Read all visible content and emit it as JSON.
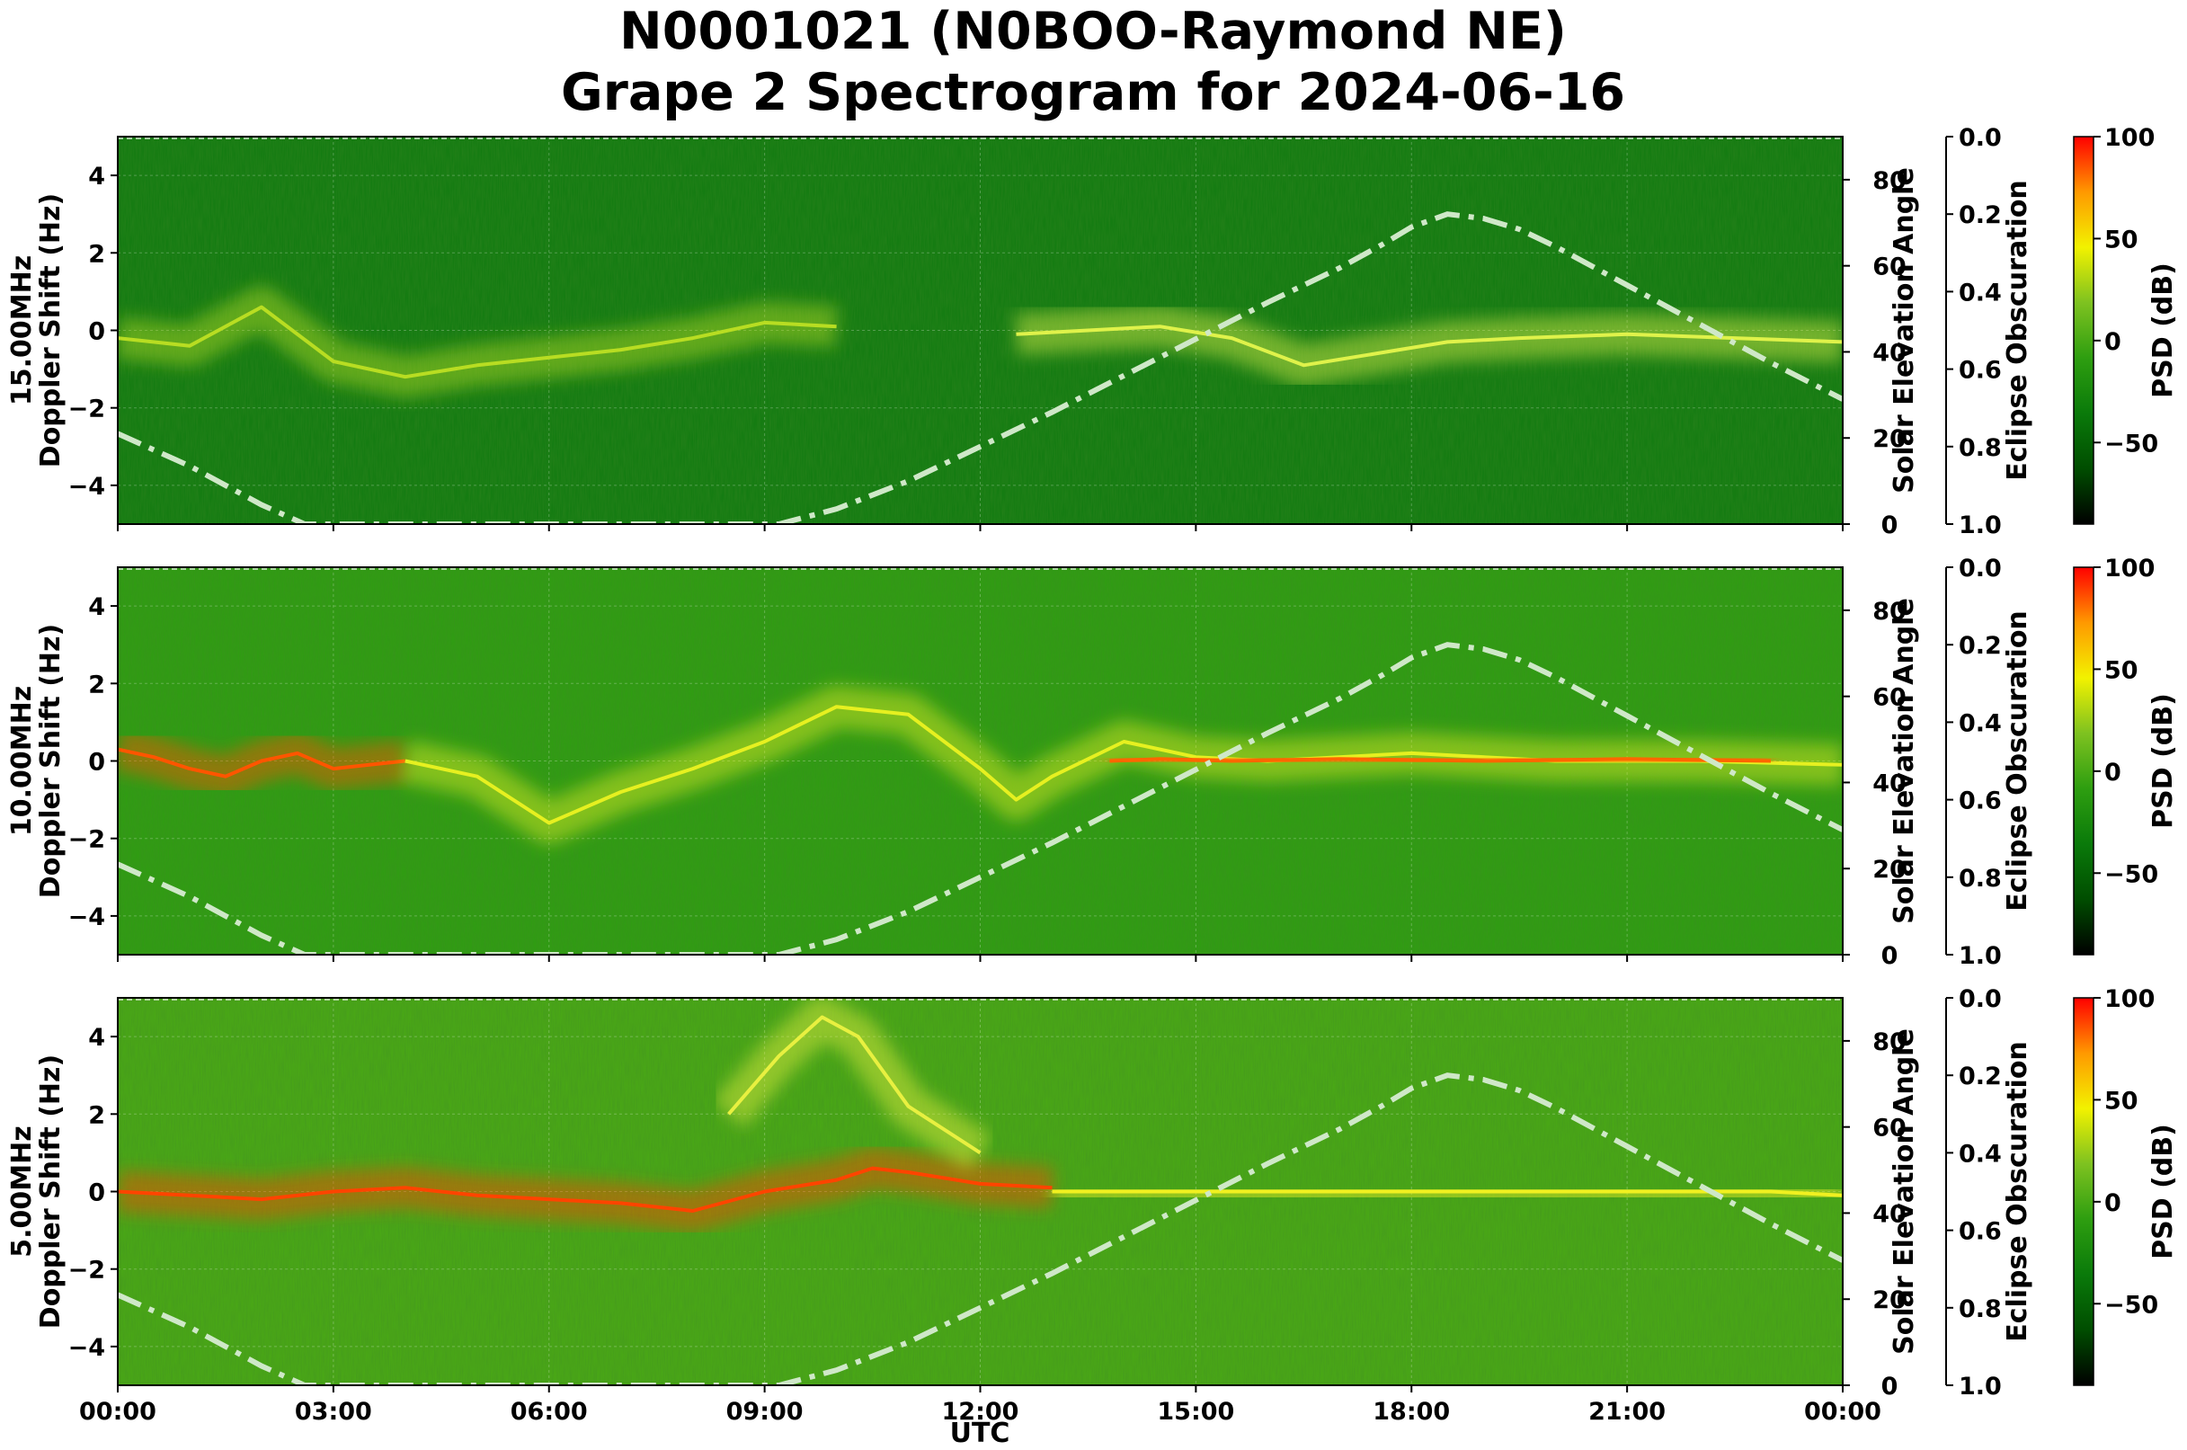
{
  "chart_data": {
    "type": "heatmap",
    "title_line1": "N0001021 (N0BOO-Raymond NE)",
    "title_line2": "Grape 2 Spectrogram for 2024-06-16",
    "xlabel": "UTC",
    "x_ticks": [
      "00:00",
      "03:00",
      "06:00",
      "09:00",
      "12:00",
      "15:00",
      "18:00",
      "21:00",
      "00:00"
    ],
    "xlim_hours": [
      0,
      24
    ],
    "ylim": [
      -5,
      5
    ],
    "y_ticks": [
      4,
      2,
      0,
      -2,
      -4
    ],
    "y_tick_labels": [
      "4",
      "2",
      "0",
      "−2",
      "−4"
    ],
    "right_axis_label": "Solar Elevation Angle",
    "right_ylim": [
      0,
      90
    ],
    "right_ticks": [
      80,
      60,
      40,
      20,
      0
    ],
    "right_tick_labels": [
      "80",
      "60",
      "40",
      "20",
      "0"
    ],
    "eclipse_axis_label": "Eclipse Obscuration",
    "eclipse_ylim": [
      0,
      1
    ],
    "eclipse_ticks": [
      0.0,
      0.2,
      0.4,
      0.6,
      0.8,
      1.0
    ],
    "eclipse_tick_labels": [
      "0.0",
      "0.2",
      "0.4",
      "0.6",
      "0.8",
      "1.0"
    ],
    "colorbar_label": "PSD (dB)",
    "colorbar_range": [
      -90,
      100
    ],
    "colorbar_ticks": [
      100,
      50,
      0,
      -50
    ],
    "colorbar_tick_labels": [
      "100",
      "50",
      "0",
      "−50"
    ],
    "colormap": [
      "#000000",
      "#004d00",
      "#0a7a0a",
      "#2e9e10",
      "#7ec220",
      "#f2f200",
      "#ff9900",
      "#ff0000"
    ],
    "solar_elevation_line_color": "#cfe8c8",
    "panels": [
      {
        "id": "15mhz",
        "ylabel_line1": "15.00MHz",
        "ylabel_line2": "Doppler Shift (Hz)",
        "base_color": "#0f7a0f",
        "signal_traces": [
          {
            "color": "#b8dd22",
            "points": [
              [
                0,
                -0.2
              ],
              [
                1,
                -0.4
              ],
              [
                2,
                0.6
              ],
              [
                3,
                -0.8
              ],
              [
                4,
                -1.2
              ],
              [
                5,
                -0.9
              ],
              [
                6,
                -0.7
              ],
              [
                7,
                -0.5
              ],
              [
                8,
                -0.2
              ],
              [
                9,
                0.2
              ],
              [
                10,
                0.1
              ]
            ]
          },
          {
            "color": "#dff24a",
            "points": [
              [
                12.5,
                -0.1
              ],
              [
                13.5,
                0.0
              ],
              [
                14.5,
                0.1
              ],
              [
                15.5,
                -0.2
              ],
              [
                16.5,
                -0.9
              ],
              [
                17.5,
                -0.6
              ],
              [
                18.5,
                -0.3
              ],
              [
                19.5,
                -0.2
              ],
              [
                21,
                -0.1
              ],
              [
                22.5,
                -0.2
              ],
              [
                24,
                -0.3
              ]
            ]
          }
        ],
        "solar_elevation": [
          [
            0,
            21
          ],
          [
            1,
            13.5
          ],
          [
            2,
            4.5
          ],
          [
            2.6,
            0
          ],
          [
            9.2,
            0
          ],
          [
            10,
            3.5
          ],
          [
            11,
            10
          ],
          [
            12,
            18
          ],
          [
            13,
            26
          ],
          [
            14,
            34.5
          ],
          [
            15,
            43
          ],
          [
            16,
            51.5
          ],
          [
            17,
            59.5
          ],
          [
            17.6,
            65
          ],
          [
            18,
            69
          ],
          [
            18.5,
            72
          ],
          [
            19,
            71
          ],
          [
            19.5,
            68.5
          ],
          [
            20,
            64.5
          ],
          [
            21,
            55.5
          ],
          [
            22,
            46.5
          ],
          [
            23,
            37.5
          ],
          [
            24,
            29
          ]
        ]
      },
      {
        "id": "10mhz",
        "ylabel_line1": "10.00MHz",
        "ylabel_line2": "Doppler Shift (Hz)",
        "base_color": "#2e9e10",
        "signal_traces": [
          {
            "color": "#ff5500",
            "points": [
              [
                0,
                0.3
              ],
              [
                0.5,
                0.1
              ],
              [
                1,
                -0.2
              ],
              [
                1.5,
                -0.4
              ],
              [
                2,
                0.0
              ],
              [
                2.5,
                0.2
              ],
              [
                3,
                -0.2
              ],
              [
                3.5,
                -0.1
              ],
              [
                4,
                0.0
              ]
            ]
          },
          {
            "color": "#e6f020",
            "points": [
              [
                4,
                0.0
              ],
              [
                5,
                -0.4
              ],
              [
                6,
                -1.6
              ],
              [
                7,
                -0.8
              ],
              [
                8,
                -0.2
              ],
              [
                9,
                0.5
              ],
              [
                10,
                1.4
              ],
              [
                11,
                1.2
              ],
              [
                12,
                -0.2
              ],
              [
                12.5,
                -1.0
              ],
              [
                13,
                -0.4
              ],
              [
                14,
                0.5
              ],
              [
                15,
                0.1
              ],
              [
                16,
                0.0
              ],
              [
                18,
                0.2
              ],
              [
                20,
                0.0
              ],
              [
                22,
                0.0
              ],
              [
                24,
                -0.1
              ]
            ]
          },
          {
            "color": "#ff6600",
            "points": [
              [
                13.8,
                0.0
              ],
              [
                14.5,
                0.05
              ],
              [
                15.5,
                0.0
              ],
              [
                17,
                0.05
              ],
              [
                19,
                0.0
              ],
              [
                21,
                0.05
              ],
              [
                23,
                0.0
              ]
            ]
          }
        ],
        "solar_elevation": [
          [
            0,
            21
          ],
          [
            1,
            13.5
          ],
          [
            2,
            4.5
          ],
          [
            2.6,
            0
          ],
          [
            9.2,
            0
          ],
          [
            10,
            3.5
          ],
          [
            11,
            10
          ],
          [
            12,
            18
          ],
          [
            13,
            26
          ],
          [
            14,
            34.5
          ],
          [
            15,
            43
          ],
          [
            16,
            51.5
          ],
          [
            17,
            59.5
          ],
          [
            17.6,
            65
          ],
          [
            18,
            69
          ],
          [
            18.5,
            72
          ],
          [
            19,
            71
          ],
          [
            19.5,
            68.5
          ],
          [
            20,
            64.5
          ],
          [
            21,
            55.5
          ],
          [
            22,
            46.5
          ],
          [
            23,
            37.5
          ],
          [
            24,
            29
          ]
        ]
      },
      {
        "id": "5mhz",
        "ylabel_line1": "5.00MHz",
        "ylabel_line2": "Doppler Shift (Hz)",
        "base_color": "#4aaa14",
        "signal_traces": [
          {
            "color": "#ff4400",
            "points": [
              [
                0,
                0.0
              ],
              [
                1,
                -0.1
              ],
              [
                2,
                -0.2
              ],
              [
                3,
                0.0
              ],
              [
                4,
                0.1
              ],
              [
                5,
                -0.1
              ],
              [
                6,
                -0.2
              ],
              [
                7,
                -0.3
              ],
              [
                8,
                -0.5
              ],
              [
                9,
                0.0
              ],
              [
                10,
                0.3
              ],
              [
                10.5,
                0.6
              ],
              [
                11,
                0.5
              ],
              [
                12,
                0.2
              ],
              [
                13,
                0.1
              ]
            ]
          },
          {
            "color": "#f0f020",
            "points": [
              [
                13,
                0.0
              ],
              [
                15,
                0.0
              ],
              [
                17,
                0.0
              ],
              [
                19,
                0.0
              ],
              [
                21,
                0.0
              ],
              [
                23,
                0.0
              ],
              [
                24,
                -0.1
              ]
            ]
          },
          {
            "color": "#e8f040",
            "points": [
              [
                8.5,
                2.0
              ],
              [
                9.2,
                3.5
              ],
              [
                9.8,
                4.5
              ],
              [
                10.3,
                4.0
              ],
              [
                11,
                2.2
              ],
              [
                12,
                1.0
              ]
            ]
          }
        ],
        "solar_elevation": [
          [
            0,
            21
          ],
          [
            1,
            13.5
          ],
          [
            2,
            4.5
          ],
          [
            2.6,
            0
          ],
          [
            9.2,
            0
          ],
          [
            10,
            3.5
          ],
          [
            11,
            10
          ],
          [
            12,
            18
          ],
          [
            13,
            26
          ],
          [
            14,
            34.5
          ],
          [
            15,
            43
          ],
          [
            16,
            51.5
          ],
          [
            17,
            59.5
          ],
          [
            17.6,
            65
          ],
          [
            18,
            69
          ],
          [
            18.5,
            72
          ],
          [
            19,
            71
          ],
          [
            19.5,
            68.5
          ],
          [
            20,
            64.5
          ],
          [
            21,
            55.5
          ],
          [
            22,
            46.5
          ],
          [
            23,
            37.5
          ],
          [
            24,
            29
          ]
        ]
      }
    ]
  }
}
